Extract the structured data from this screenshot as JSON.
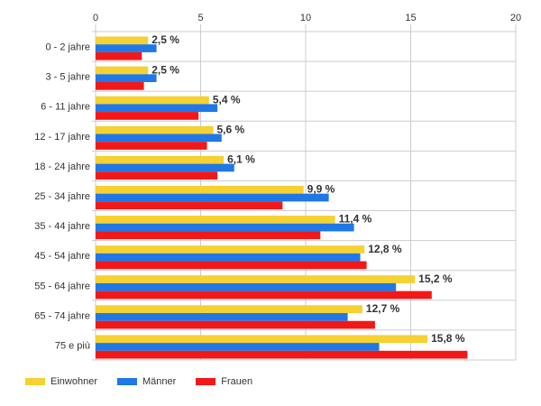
{
  "chart_data": {
    "type": "bar",
    "orientation": "horizontal",
    "categories": [
      "0 - 2 jahre",
      "3 - 5 jahre",
      "6 - 11 jahre",
      "12 - 17 jahre",
      "18 - 24 jahre",
      "25 - 34 jahre",
      "35 - 44 jahre",
      "45 - 54 jahre",
      "55 - 64 jahre",
      "65 - 74 jahre",
      "75 e più"
    ],
    "xlim": [
      0,
      20
    ],
    "xticks": [
      0,
      5,
      10,
      15,
      20
    ],
    "xtick_labels": [
      "0",
      "5",
      "10",
      "15",
      "20"
    ],
    "grid": true,
    "legend_position": "bottom-left",
    "series": [
      {
        "name": "Einwohner",
        "color": "#f5d132",
        "values": [
          2.5,
          2.5,
          5.4,
          5.6,
          6.1,
          9.9,
          11.4,
          12.8,
          15.2,
          12.7,
          15.8
        ]
      },
      {
        "name": "Männer",
        "color": "#1f78e6",
        "values": [
          2.9,
          2.9,
          5.8,
          6.0,
          6.6,
          11.1,
          12.3,
          12.6,
          14.3,
          12.0,
          13.5
        ]
      },
      {
        "name": "Frauen",
        "color": "#f21818",
        "values": [
          2.2,
          2.3,
          4.9,
          5.3,
          5.8,
          8.9,
          10.7,
          12.9,
          16.0,
          13.3,
          17.7
        ]
      }
    ],
    "data_labels": [
      "2,5 %",
      "2,5 %",
      "5,4 %",
      "5,6 %",
      "6,1 %",
      "9,9 %",
      "11,4 %",
      "12,8 %",
      "15,2 %",
      "12,7 %",
      "15,8 %"
    ]
  }
}
